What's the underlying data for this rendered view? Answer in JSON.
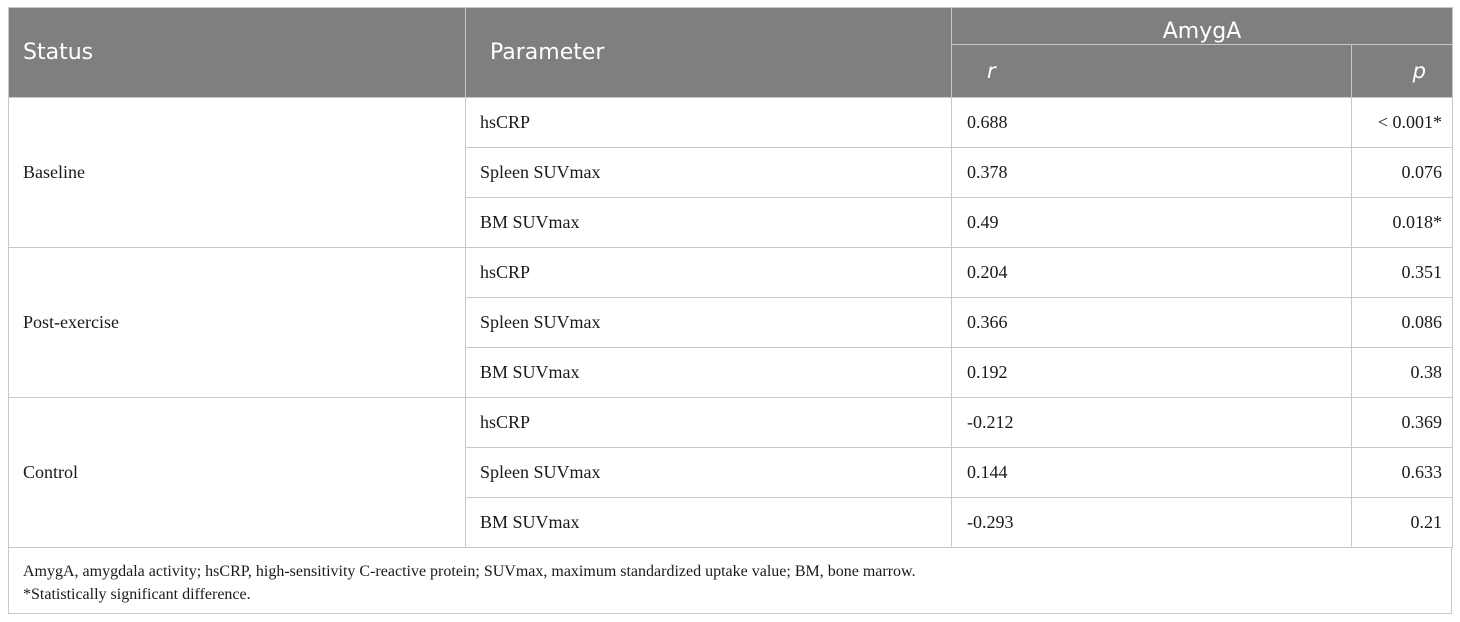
{
  "header": {
    "status": "Status",
    "parameter": "Parameter",
    "group": "AmygA",
    "r": "r",
    "p": "p"
  },
  "groups": [
    {
      "status": "Baseline",
      "rows": [
        {
          "parameter": "hsCRP",
          "r": "0.688",
          "p": "< 0.001*"
        },
        {
          "parameter": "Spleen SUVmax",
          "r": "0.378",
          "p": "0.076"
        },
        {
          "parameter": "BM SUVmax",
          "r": "0.49",
          "p": "0.018*"
        }
      ]
    },
    {
      "status": "Post-exercise",
      "rows": [
        {
          "parameter": "hsCRP",
          "r": "0.204",
          "p": "0.351"
        },
        {
          "parameter": "Spleen SUVmax",
          "r": "0.366",
          "p": "0.086"
        },
        {
          "parameter": "BM SUVmax",
          "r": "0.192",
          "p": "0.38"
        }
      ]
    },
    {
      "status": "Control",
      "rows": [
        {
          "parameter": "hsCRP",
          "r": "-0.212",
          "p": "0.369"
        },
        {
          "parameter": "Spleen SUVmax",
          "r": "0.144",
          "p": "0.633"
        },
        {
          "parameter": "BM SUVmax",
          "r": "-0.293",
          "p": "0.21"
        }
      ]
    }
  ],
  "footnotes": [
    "AmygA, amygdala activity; hsCRP, high-sensitivity C-reactive protein; SUVmax, maximum standardized uptake value; BM, bone marrow.",
    "*Statistically significant difference."
  ]
}
